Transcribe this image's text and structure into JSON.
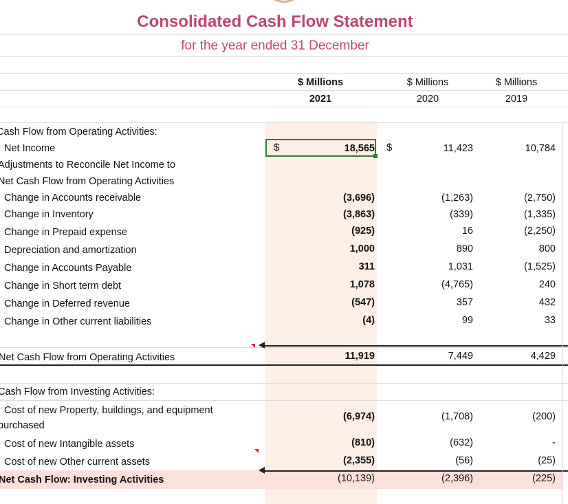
{
  "report": {
    "title": "Consolidated Cash Flow Statement",
    "subtitle": "for the year ended 31 December"
  },
  "columns": [
    {
      "unit": "$ Millions",
      "year": "2021"
    },
    {
      "unit": "$ Millions",
      "year": "2020"
    },
    {
      "unit": "$ Millions",
      "year": "2019"
    }
  ],
  "operating": {
    "heading": "Cash Flow from Operating Activities:",
    "net_income": {
      "label": "Net Income",
      "currency": "$",
      "currency_2020": "$",
      "v2021": "18,565",
      "v2020": "11,423",
      "v2019": "10,784"
    },
    "adj_line1": "Adjustments to Reconcile Net Income to",
    "adj_line2": "Net Cash Flow from Operating Activities",
    "rows": [
      {
        "label": "Change in Accounts receivable",
        "v2021": "(3,696)",
        "v2020": "(1,263)",
        "v2019": "(2,750)"
      },
      {
        "label": "Change in Inventory",
        "v2021": "(3,863)",
        "v2020": "(339)",
        "v2019": "(1,335)"
      },
      {
        "label": "Change in Prepaid expense",
        "v2021": "(925)",
        "v2020": "16",
        "v2019": "(2,250)"
      },
      {
        "label": "Depreciation and amortization",
        "v2021": "1,000",
        "v2020": "890",
        "v2019": "800"
      },
      {
        "label": "Change in Accounts Payable",
        "v2021": "311",
        "v2020": "1,031",
        "v2019": "(1,525)"
      },
      {
        "label": "Change in Short term debt",
        "v2021": "1,078",
        "v2020": "(4,765)",
        "v2019": "240"
      },
      {
        "label": "Change in Deferred revenue",
        "v2021": "(547)",
        "v2020": "357",
        "v2019": "432"
      },
      {
        "label": "Change in Other current liabilities",
        "v2021": "(4)",
        "v2020": "99",
        "v2019": "33"
      }
    ],
    "total": {
      "label": "Net Cash Flow from Operating Activities",
      "v2021": "11,919",
      "v2020": "7,449",
      "v2019": "4,429"
    }
  },
  "investing": {
    "heading": "Cash Flow from Investing Activities:",
    "rows": [
      {
        "label_line1": "Cost of new Property, buildings, and equipment",
        "label_line2": "purchased",
        "v2021": "(6,974)",
        "v2020": "(1,708)",
        "v2019": "(200)"
      },
      {
        "label": "Cost of new Intangible assets",
        "v2021": "(810)",
        "v2020": "(632)",
        "v2019": "-"
      },
      {
        "label": "Cost of new Other current assets",
        "v2021": "(2,355)",
        "v2020": "(56)",
        "v2019": "(25)"
      }
    ],
    "total": {
      "label": "Net Cash Flow: Investing Activities",
      "v2021": "(10,139)",
      "v2020": "(2,396)",
      "v2019": "(225)"
    }
  }
}
